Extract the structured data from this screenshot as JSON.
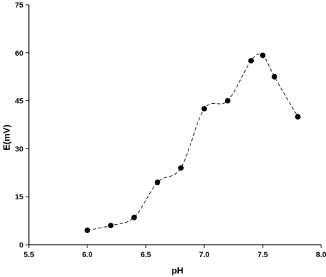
{
  "chart_data": {
    "type": "line",
    "xlabel": "pH",
    "ylabel": "E(mV)",
    "xlim": [
      5.5,
      8.0
    ],
    "ylim": [
      0,
      75
    ],
    "x_ticks": [
      5.5,
      6.0,
      6.5,
      7.0,
      7.5,
      8.0
    ],
    "x_tick_labels": [
      "5.5",
      "6.0",
      "6.5",
      "7.0",
      "7.5",
      "8.0"
    ],
    "y_ticks": [
      0,
      15,
      30,
      45,
      60,
      75
    ],
    "y_tick_labels": [
      "0",
      "15",
      "30",
      "45",
      "60",
      "75"
    ],
    "grid": false,
    "line_style": "dashed",
    "marker": "filled-circle",
    "colors": {
      "series": "#000000"
    },
    "series": [
      {
        "x": [
          6.0,
          6.2,
          6.4,
          6.6,
          6.8,
          7.0,
          7.2,
          7.4,
          7.5,
          7.6,
          7.8
        ],
        "y": [
          4.5,
          6.0,
          8.5,
          19.5,
          24.0,
          42.5,
          45.0,
          57.5,
          59.2,
          52.5,
          40.0
        ]
      }
    ]
  }
}
